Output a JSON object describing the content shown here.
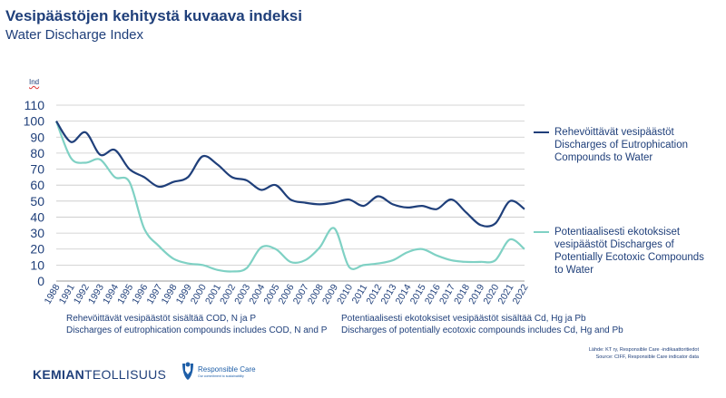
{
  "header": {
    "title": "Vesipäästöjen kehitystä kuvaava indeksi",
    "subtitle": "Water Discharge Index"
  },
  "colors": {
    "eutro": "#1f3f7a",
    "ecotox": "#7fd1c4",
    "grid": "#c8c8c8",
    "text": "#1f3f7a"
  },
  "chart_data": {
    "type": "line",
    "ylabel": "Ind",
    "ylim": [
      0,
      110
    ],
    "yticks": [
      0,
      10,
      20,
      30,
      40,
      50,
      60,
      70,
      80,
      90,
      100,
      110
    ],
    "grid": true,
    "legend_position": "right",
    "x": [
      "1988",
      "1991",
      "1992",
      "1993",
      "1994",
      "1995",
      "1996",
      "1997",
      "1998",
      "1999",
      "2000",
      "2001",
      "2002",
      "2003",
      "2004",
      "2005",
      "2006",
      "2007",
      "2008",
      "2009",
      "2010",
      "2011",
      "2012",
      "2013",
      "2014",
      "2015",
      "2016",
      "2017",
      "2018",
      "2019",
      "2020",
      "2021",
      "2022"
    ],
    "series": [
      {
        "name": "Rehevöittävät vesipäästöt Discharges of Eutrophication Compounds to Water",
        "color": "#1f3f7a",
        "values": [
          100,
          87,
          93,
          79,
          82,
          70,
          65,
          59,
          62,
          65,
          78,
          73,
          65,
          63,
          57,
          60,
          51,
          49,
          48,
          49,
          51,
          47,
          53,
          48,
          46,
          47,
          45,
          51,
          43,
          35,
          36,
          50,
          45
        ]
      },
      {
        "name": "Potentiaalisesti ekotoksiset vesipäästöt Discharges of Potentially Ecotoxic Compounds to Water",
        "color": "#7fd1c4",
        "values": [
          100,
          77,
          74,
          76,
          65,
          62,
          33,
          22,
          14,
          11,
          10,
          7,
          6,
          8,
          21,
          20,
          12,
          13,
          21,
          33,
          9,
          10,
          11,
          13,
          18,
          20,
          16,
          13,
          12,
          12,
          13,
          26,
          20
        ]
      }
    ]
  },
  "legend": [
    {
      "id": "eutro",
      "label": "Rehevöittävät vesipäästöt Discharges of Eutrophication Compounds to Water"
    },
    {
      "id": "ecotox",
      "label": "Potentiaalisesti ekotoksiset vesipäästöt Discharges of Potentially Ecotoxic Compounds to Water"
    }
  ],
  "notes": {
    "left_line1": "Rehevöittävät vesipäästöt sisältää COD, N ja P",
    "left_line2": "Discharges of eutrophication compounds includes COD, N and P",
    "right_line1": "Potentiaalisesti ekotoksiset vesipäästöt sisältää Cd, Hg ja Pb",
    "right_line2": "Discharges of potentially ecotoxic compounds includes Cd, Hg and Pb"
  },
  "source": {
    "line1": "Lähde: KT ry, Responsible Care -indikaattoritiedot",
    "line2": "Source: CIFF, Responsible Care indicator data"
  },
  "footer": {
    "kt_logo_bold": "KEMIAN",
    "kt_logo_rest": "TEOLLISUUS",
    "rc_logo_name": "Responsible Care",
    "rc_logo_tagline": "Our commitment to sustainability"
  }
}
